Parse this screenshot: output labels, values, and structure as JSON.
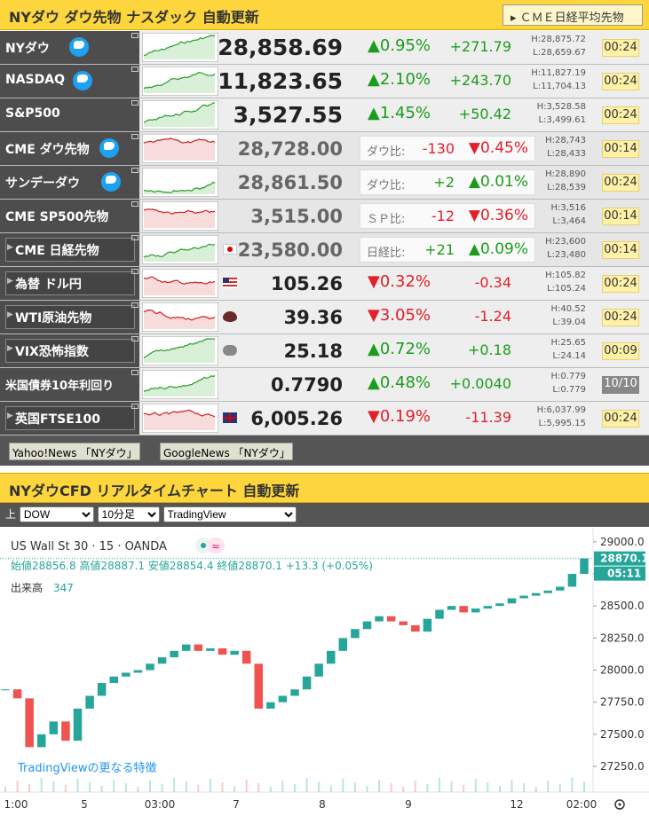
{
  "header": {
    "title": "NYダウ ダウ先物 ナスダック 自動更新",
    "button": "ＣＭＥ日経平均先物"
  },
  "rows": [
    {
      "name": "NYダウ",
      "price": "28,858.69",
      "pct": "▲0.95%",
      "diff": "+271.79",
      "high": "H:28,875.72",
      "low": "L:28,659.67",
      "time": "00:24"
    },
    {
      "name": "NASDAQ",
      "price": "11,823.65",
      "pct": "▲2.10%",
      "diff": "+243.70",
      "high": "H:11,827.19",
      "low": "L:11,704.13",
      "time": "00:24"
    },
    {
      "name": "S&P500",
      "price": "3,527.55",
      "pct": "▲1.45%",
      "diff": "+50.42",
      "high": "H:3,528.58",
      "low": "L:3,499.61",
      "time": "00:24"
    },
    {
      "name": "CME ダウ先物",
      "price": "28,728.00",
      "ratio_label": "ダウ比:",
      "diff": "-130",
      "pct": "▼0.45%",
      "high": "H:28,743",
      "low": "L:28,433",
      "time": "00:14"
    },
    {
      "name": "サンデーダウ",
      "price": "28,861.50",
      "ratio_label": "ダウ比:",
      "diff": "+2",
      "pct": "▲0.01%",
      "high": "H:28,890",
      "low": "L:28,539",
      "time": "00:24"
    },
    {
      "name": "CME SP500先物",
      "price": "3,515.00",
      "ratio_label": "ＳＰ比:",
      "diff": "-12",
      "pct": "▼0.36%",
      "high": "H:3,516",
      "low": "L:3,464",
      "time": "00:14"
    },
    {
      "name": "CME 日経先物",
      "price": "23,580.00",
      "ratio_label": "日経比:",
      "diff": "+21",
      "pct": "▲0.09%",
      "high": "H:23,600",
      "low": "L:23,480",
      "time": "00:14"
    },
    {
      "name": "為替 ドル円",
      "price": "105.26",
      "pct": "▼0.32%",
      "diff": "-0.34",
      "high": "H:105.82",
      "low": "L:105.24",
      "time": "00:24"
    },
    {
      "name": "WTI原油先物",
      "price": "39.36",
      "pct": "▼3.05%",
      "diff": "-1.24",
      "high": "H:40.52",
      "low": "L:39.04",
      "time": "00:24"
    },
    {
      "name": "VIX恐怖指数",
      "price": "25.18",
      "pct": "▲0.72%",
      "diff": "+0.18",
      "high": "H:25.65",
      "low": "L:24.14",
      "time": "00:09"
    },
    {
      "name": "米国債券10年利回り",
      "price": "0.7790",
      "pct": "▲0.48%",
      "diff": "+0.0040",
      "high": "H:0.779",
      "low": "L:0.779",
      "time": "10/10"
    },
    {
      "name": "英国FTSE100",
      "price": "6,005.26",
      "pct": "▼0.19%",
      "diff": "-11.39",
      "high": "H:6,037.99",
      "low": "L:5,995.15",
      "time": "00:24"
    }
  ],
  "links": [
    "Yahoo!News 「NYダウ」",
    "GoogleNews 「NYダウ」"
  ],
  "chart_panel": {
    "title": "NYダウCFD リアルタイムチャート 自動更新",
    "label": "上",
    "selects": [
      "DOW",
      "10分足",
      "TradingView"
    ]
  },
  "chart": {
    "type": "candlestick",
    "symbol": "US Wall St 30 · 15 · OANDA",
    "ohlc": "始値28856.8 高値28887.1 安値28854.4 終値28870.1 +13.3 (+0.05%)",
    "volume_label": "出来高",
    "volume": 347,
    "promo": "TradingViewの更なる特徴",
    "last": 28870.1,
    "last_label": "28870.1",
    "countdown": "05:11",
    "ylim": [
      27050,
      29075
    ],
    "yticks": [
      {
        "value": 29000,
        "label": "29000.0"
      },
      {
        "value": 28750,
        "label": "28750.0"
      },
      {
        "value": 28500,
        "label": "28500.0"
      },
      {
        "value": 28250,
        "label": "28250.0"
      },
      {
        "value": 28000,
        "label": "28000.0"
      },
      {
        "value": 27750,
        "label": "27750.0"
      },
      {
        "value": 27500,
        "label": "27500.0"
      },
      {
        "value": 27250,
        "label": "27250.0"
      }
    ],
    "xticks": [
      "1:00",
      "5",
      "03:00",
      "7",
      "8",
      "9",
      "12",
      "02:00"
    ],
    "close": [
      27850,
      27780,
      27400,
      27500,
      27600,
      27450,
      27700,
      27800,
      27900,
      27950,
      27980,
      28000,
      28050,
      28100,
      28150,
      28200,
      28150,
      28170,
      28120,
      28150,
      28050,
      27700,
      27750,
      27800,
      27850,
      27950,
      28050,
      28150,
      28250,
      28320,
      28380,
      28420,
      28380,
      28350,
      28300,
      28400,
      28470,
      28500,
      28450,
      28480,
      28500,
      28520,
      28560,
      28580,
      28600,
      28620,
      28650,
      28750,
      28870
    ]
  }
}
